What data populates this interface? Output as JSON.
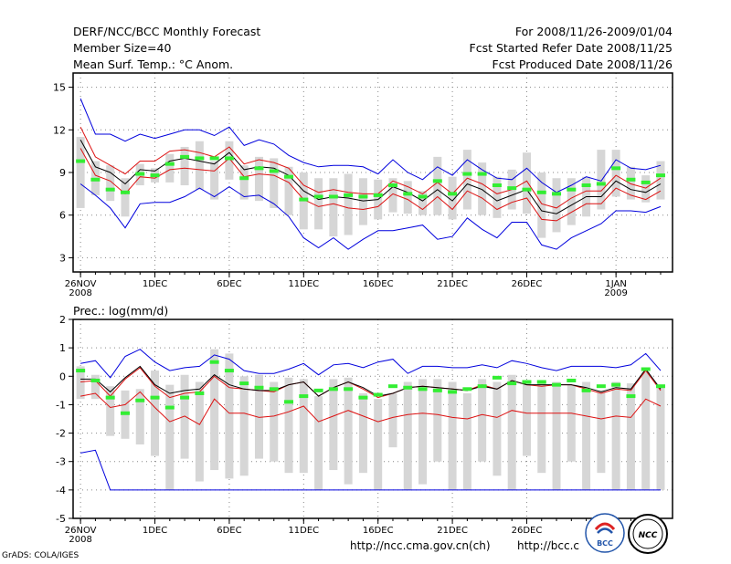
{
  "header": {
    "title": "DERF/NCC/BCC Monthly Forecast",
    "member_size": "Member Size=40",
    "variable": "Mean Surf. Temp.: °C Anom.",
    "period": "For 2008/11/26-2009/01/04",
    "started": "Fcst Started Refer Date 2008/11/25",
    "produced": "Fcst Produced Date 2008/11/26"
  },
  "footer": {
    "url1": "http://ncc.cma.gov.cn(ch)",
    "url2": "http://bcc.c",
    "grads": "GrADS: COLA/IGES",
    "logo_bcc": "BCC",
    "logo_ncc": "NCC"
  },
  "colors": {
    "envelope": "#0000dd",
    "spread": "#dd1111",
    "mean": "#000000",
    "median": "#33ee33",
    "box": "#d6d6d6",
    "grid": "#888888"
  },
  "chart_data": [
    {
      "type": "box",
      "title": "Mean Surf. Temp.: °C Anom.",
      "xlabel": "",
      "ylabel": "",
      "ylim": [
        2,
        16
      ],
      "yticks": [
        3,
        6,
        9,
        12,
        15
      ],
      "xlim": [
        0.5,
        40.8
      ],
      "xticks": [
        {
          "day": 1,
          "label": "26NOV",
          "sub": "2008"
        },
        {
          "day": 6,
          "label": "1DEC",
          "sub": ""
        },
        {
          "day": 11,
          "label": "6DEC",
          "sub": ""
        },
        {
          "day": 16,
          "label": "11DEC",
          "sub": ""
        },
        {
          "day": 21,
          "label": "16DEC",
          "sub": ""
        },
        {
          "day": 26,
          "label": "21DEC",
          "sub": ""
        },
        {
          "day": 31,
          "label": "26DEC",
          "sub": ""
        },
        {
          "day": 37,
          "label": "1JAN",
          "sub": "2009"
        }
      ],
      "series": {
        "max": [
          14.2,
          11.7,
          11.7,
          11.2,
          11.7,
          11.4,
          11.7,
          12.0,
          12.0,
          11.6,
          12.2,
          10.9,
          11.3,
          11.0,
          10.2,
          9.7,
          9.4,
          9.5,
          9.5,
          9.4,
          8.9,
          9.9,
          9.0,
          8.5,
          9.4,
          8.8,
          9.9,
          9.2,
          8.6,
          8.5,
          9.3,
          8.3,
          7.6,
          8.1,
          8.7,
          8.4,
          9.9,
          9.3,
          9.2,
          9.5
        ],
        "upper": [
          12.2,
          10.1,
          9.5,
          8.9,
          9.8,
          9.8,
          10.5,
          10.6,
          10.4,
          10.1,
          10.8,
          9.6,
          9.9,
          9.7,
          9.3,
          8.1,
          7.6,
          7.8,
          7.6,
          7.5,
          7.5,
          8.4,
          8.0,
          7.5,
          8.3,
          7.5,
          8.6,
          8.2,
          7.5,
          7.8,
          8.4,
          6.8,
          6.5,
          7.2,
          7.7,
          7.7,
          8.8,
          8.2,
          7.9,
          8.6
        ],
        "mean": [
          11.3,
          9.4,
          9.0,
          8.2,
          9.2,
          9.1,
          9.8,
          10.0,
          9.8,
          9.6,
          10.4,
          9.2,
          9.4,
          9.3,
          8.8,
          7.7,
          7.1,
          7.3,
          7.2,
          7.0,
          7.1,
          8.0,
          7.6,
          7.0,
          7.8,
          7.0,
          8.2,
          7.8,
          7.0,
          7.4,
          7.8,
          6.3,
          6.1,
          6.7,
          7.3,
          7.3,
          8.4,
          7.8,
          7.6,
          8.2
        ],
        "lower": [
          10.7,
          8.8,
          8.4,
          7.5,
          8.7,
          8.6,
          9.2,
          9.3,
          9.2,
          9.1,
          10.0,
          8.7,
          8.9,
          8.8,
          8.3,
          7.1,
          6.6,
          6.8,
          6.5,
          6.4,
          6.6,
          7.5,
          7.1,
          6.4,
          7.3,
          6.4,
          7.7,
          7.2,
          6.4,
          6.9,
          7.2,
          5.7,
          5.6,
          6.2,
          6.8,
          6.8,
          7.9,
          7.4,
          7.1,
          7.7
        ],
        "min": [
          8.2,
          7.4,
          6.5,
          5.1,
          6.8,
          6.9,
          6.9,
          7.3,
          7.9,
          7.3,
          8.0,
          7.3,
          7.4,
          6.8,
          5.9,
          4.4,
          3.7,
          4.4,
          3.6,
          4.3,
          4.9,
          4.9,
          5.1,
          5.3,
          4.3,
          4.5,
          5.8,
          5.0,
          4.4,
          5.5,
          5.5,
          3.9,
          3.6,
          4.4,
          4.9,
          5.4,
          6.3,
          6.3,
          6.2,
          6.6
        ],
        "box_top": [
          11.5,
          9.8,
          9.5,
          8.6,
          9.6,
          9.3,
          10.3,
          10.8,
          11.2,
          9.8,
          11.2,
          9.5,
          10.1,
          10.0,
          9.4,
          9.0,
          8.6,
          8.6,
          8.9,
          8.6,
          8.5,
          8.6,
          8.4,
          7.7,
          10.1,
          8.7,
          10.6,
          9.7,
          8.7,
          9.2,
          10.4,
          9.0,
          8.6,
          8.6,
          8.7,
          10.6,
          10.6,
          9.4,
          8.8,
          9.8
        ],
        "box_bottom": [
          6.5,
          7.4,
          7.0,
          5.9,
          8.1,
          8.3,
          8.3,
          8.1,
          7.8,
          7.1,
          8.5,
          7.1,
          7.0,
          6.5,
          6.0,
          5.0,
          5.0,
          4.5,
          4.6,
          5.3,
          5.7,
          6.2,
          6.1,
          6.0,
          6.0,
          5.7,
          6.4,
          6.0,
          5.8,
          6.4,
          6.1,
          4.4,
          4.8,
          5.3,
          5.9,
          6.4,
          7.3,
          7.1,
          6.9,
          7.1
        ],
        "median": [
          9.8,
          8.5,
          7.8,
          7.6,
          8.9,
          8.8,
          9.6,
          10.1,
          10.0,
          10.0,
          10.0,
          8.6,
          9.3,
          9.1,
          8.7,
          7.1,
          7.3,
          7.3,
          7.4,
          7.3,
          7.4,
          8.1,
          7.5,
          7.3,
          8.4,
          7.5,
          8.9,
          8.9,
          8.1,
          7.9,
          7.8,
          7.6,
          7.5,
          7.8,
          8.1,
          8.2,
          9.3,
          8.5,
          8.3,
          8.8
        ]
      }
    },
    {
      "type": "box",
      "title": "Prec.: log(mm/d)",
      "xlabel": "",
      "ylabel": "",
      "ylim": [
        -5,
        2
      ],
      "yticks": [
        -5,
        -4,
        -3,
        -2,
        -1,
        0,
        1,
        2
      ],
      "xlim": [
        0.5,
        40.8
      ],
      "xticks": [
        {
          "day": 1,
          "label": "26NOV",
          "sub": "2008"
        },
        {
          "day": 6,
          "label": "1DEC",
          "sub": ""
        },
        {
          "day": 11,
          "label": "6DEC",
          "sub": ""
        },
        {
          "day": 16,
          "label": "11DEC",
          "sub": ""
        },
        {
          "day": 21,
          "label": "16DEC",
          "sub": ""
        },
        {
          "day": 26,
          "label": "21DEC",
          "sub": ""
        },
        {
          "day": 31,
          "label": "26DEC",
          "sub": ""
        }
      ],
      "series": {
        "max": [
          0.45,
          0.55,
          -0.05,
          0.7,
          0.95,
          0.5,
          0.2,
          0.3,
          0.35,
          0.75,
          0.6,
          0.2,
          0.1,
          0.1,
          0.25,
          0.45,
          0.05,
          0.4,
          0.45,
          0.3,
          0.5,
          0.6,
          0.1,
          0.35,
          0.35,
          0.3,
          0.3,
          0.4,
          0.3,
          0.55,
          0.45,
          0.3,
          0.2,
          0.35,
          0.35,
          0.35,
          0.3,
          0.4,
          0.8,
          0.2
        ],
        "upper": [
          -0.2,
          -0.15,
          -0.7,
          -0.1,
          0.3,
          -0.35,
          -0.75,
          -0.6,
          -0.55,
          0.0,
          -0.4,
          -0.45,
          -0.5,
          -0.55,
          -0.3,
          -0.2,
          -0.7,
          -0.4,
          -0.2,
          -0.45,
          -0.75,
          -0.6,
          -0.4,
          -0.35,
          -0.4,
          -0.45,
          -0.5,
          -0.3,
          -0.45,
          -0.15,
          -0.3,
          -0.35,
          -0.3,
          -0.3,
          -0.45,
          -0.6,
          -0.45,
          -0.5,
          0.2,
          -0.5
        ],
        "mean": [
          -0.1,
          -0.1,
          -0.55,
          -0.05,
          0.35,
          -0.3,
          -0.6,
          -0.5,
          -0.45,
          0.05,
          -0.3,
          -0.45,
          -0.5,
          -0.5,
          -0.3,
          -0.2,
          -0.7,
          -0.4,
          -0.2,
          -0.4,
          -0.7,
          -0.6,
          -0.4,
          -0.35,
          -0.4,
          -0.45,
          -0.5,
          -0.35,
          -0.45,
          -0.15,
          -0.3,
          -0.3,
          -0.3,
          -0.3,
          -0.4,
          -0.55,
          -0.4,
          -0.45,
          0.25,
          -0.45
        ],
        "lower": [
          -0.7,
          -0.6,
          -1.1,
          -1.0,
          -0.55,
          -1.1,
          -1.6,
          -1.4,
          -1.7,
          -0.8,
          -1.3,
          -1.3,
          -1.45,
          -1.4,
          -1.25,
          -1.05,
          -1.6,
          -1.4,
          -1.2,
          -1.4,
          -1.6,
          -1.45,
          -1.35,
          -1.3,
          -1.35,
          -1.45,
          -1.5,
          -1.35,
          -1.45,
          -1.2,
          -1.3,
          -1.3,
          -1.3,
          -1.3,
          -1.4,
          -1.5,
          -1.4,
          -1.45,
          -0.8,
          -1.05
        ],
        "min": [
          -2.7,
          -2.6,
          -4.0,
          -4.0,
          -4.0,
          -4.0,
          -4.0,
          -4.0,
          -4.0,
          -4.0,
          -4.0,
          -4.0,
          -4.0,
          -4.0,
          -4.0,
          -4.0,
          -4.0,
          -4.0,
          -4.0,
          -4.0,
          -4.0,
          -4.0,
          -4.0,
          -4.0,
          -4.0,
          -4.0,
          -4.0,
          -4.0,
          -4.0,
          -4.0,
          -4.0,
          -4.0,
          -4.0,
          -4.0,
          -4.0,
          -4.0,
          -4.0,
          -4.0,
          -4.0,
          -4.0
        ],
        "box_top": [
          0.35,
          0.05,
          -0.35,
          -0.5,
          -0.45,
          0.2,
          -0.3,
          0.05,
          -0.2,
          0.95,
          0.8,
          0.0,
          0.05,
          -0.2,
          -0.05,
          -0.1,
          -0.7,
          -0.1,
          -0.05,
          -0.6,
          -0.8,
          -0.6,
          -0.2,
          -0.1,
          -0.1,
          -0.2,
          -0.6,
          -0.1,
          -0.2,
          0.05,
          -0.2,
          -0.2,
          -0.2,
          -0.3,
          -0.2,
          -0.5,
          -0.2,
          -0.25,
          0.15,
          -0.4
        ],
        "box_bottom": [
          -0.8,
          -0.8,
          -2.1,
          -2.2,
          -2.4,
          -2.8,
          -4.0,
          -2.9,
          -3.7,
          -3.3,
          -3.6,
          -3.5,
          -2.9,
          -3.0,
          -3.4,
          -3.4,
          -4.0,
          -3.3,
          -3.8,
          -3.4,
          -4.0,
          -2.5,
          -4.0,
          -3.8,
          -3.0,
          -4.0,
          -4.0,
          -3.0,
          -3.5,
          -4.0,
          -2.8,
          -3.4,
          -4.0,
          -3.0,
          -4.0,
          -3.4,
          -4.0,
          -4.0,
          -4.0,
          -4.0
        ],
        "median": [
          0.2,
          -0.15,
          -0.75,
          -1.3,
          -0.85,
          -0.75,
          -1.1,
          -0.75,
          -0.6,
          0.5,
          0.2,
          -0.25,
          -0.4,
          -0.45,
          -0.9,
          -0.7,
          -0.5,
          -0.45,
          -0.45,
          -0.75,
          -0.65,
          -0.35,
          -0.4,
          -0.45,
          -0.5,
          -0.55,
          -0.45,
          -0.35,
          -0.05,
          -0.25,
          -0.2,
          -0.2,
          -0.3,
          -0.15,
          -0.5,
          -0.35,
          -0.3,
          -0.7,
          0.25,
          -0.35
        ]
      }
    }
  ]
}
